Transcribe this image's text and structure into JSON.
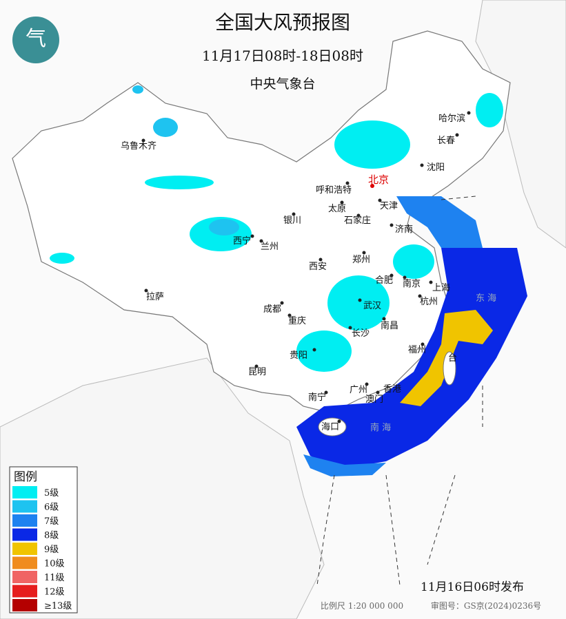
{
  "header": {
    "title": "全国大风预报图",
    "period": "11月17日08时-18日08时",
    "issuer": "中央气象台"
  },
  "cities": [
    "乌鲁木齐",
    "哈尔滨",
    "长春",
    "沈阳",
    "北京",
    "呼和浩特",
    "天津",
    "太原",
    "石家庄",
    "银川",
    "济南",
    "西宁",
    "兰州",
    "郑州",
    "西安",
    "合肥",
    "南京",
    "上海",
    "拉萨",
    "武汉",
    "杭州",
    "成都",
    "重庆",
    "南昌",
    "长沙",
    "福州",
    "台",
    "贵阳",
    "昆明",
    "广州",
    "香港",
    "澳门",
    "南宁",
    "海口"
  ],
  "sea_labels": [
    "东 海",
    "南 海"
  ],
  "legend": {
    "title": "图例",
    "items": [
      {
        "label": "5级",
        "color": "#00eef2"
      },
      {
        "label": "6级",
        "color": "#1ec3f0"
      },
      {
        "label": "7级",
        "color": "#1e82f0"
      },
      {
        "label": "8级",
        "color": "#0a28e6"
      },
      {
        "label": "9级",
        "color": "#f0c400"
      },
      {
        "label": "10级",
        "color": "#f08c1e"
      },
      {
        "label": "11级",
        "color": "#f06464"
      },
      {
        "label": "12级",
        "color": "#e61e1e"
      },
      {
        "label": "≥13级",
        "color": "#b40000"
      }
    ]
  },
  "footer": {
    "release": "11月16日06时发布",
    "scale": "比例尺 1:20 000 000",
    "approval": "审图号：GS京(2024)0236号"
  }
}
